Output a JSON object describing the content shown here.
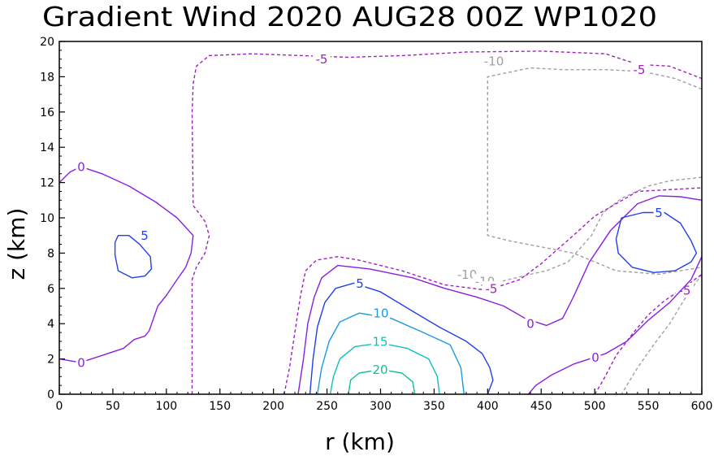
{
  "chart_data": {
    "type": "contour",
    "title": "Gradient Wind 2020 AUG28 00Z  WP1020",
    "xlabel": "r (km)",
    "ylabel": "z (km)",
    "xlim": [
      0,
      600
    ],
    "ylim": [
      0,
      20
    ],
    "xticks": [
      "0",
      "50",
      "100",
      "150",
      "200",
      "250",
      "300",
      "350",
      "400",
      "450",
      "500",
      "550",
      "600"
    ],
    "yticks": [
      "0",
      "2",
      "4",
      "6",
      "8",
      "10",
      "12",
      "14",
      "16",
      "18",
      "20"
    ],
    "contours": [
      {
        "level": -10,
        "label": "-10",
        "color": "#a0a0a0",
        "dash": true,
        "paths": [
          [
            [
              600,
              17.3
            ],
            [
              575,
              17.9
            ],
            [
              545,
              18.3
            ],
            [
              510,
              18.4
            ],
            [
              470,
              18.4
            ],
            [
              440,
              18.5
            ],
            [
              400,
              18.0
            ],
            [
              400,
              9.0
            ],
            [
              420,
              8.7
            ],
            [
              480,
              8.0
            ],
            [
              520,
              7.0
            ],
            [
              560,
              6.8
            ],
            [
              580,
              7.0
            ],
            [
              600,
              7.2
            ]
          ],
          [
            [
              600,
              12.3
            ],
            [
              570,
              12.1
            ],
            [
              550,
              11.8
            ],
            [
              525,
              11.1
            ],
            [
              508,
              10.3
            ],
            [
              497,
              9.0
            ],
            [
              475,
              7.5
            ],
            [
              455,
              7.0
            ],
            [
              440,
              6.8
            ],
            [
              413,
              6.4
            ]
          ],
          [
            [
              600,
              6.8
            ],
            [
              585,
              5.5
            ],
            [
              570,
              4.0
            ],
            [
              555,
              2.8
            ],
            [
              540,
              1.5
            ],
            [
              525,
              0
            ]
          ]
        ],
        "labels": [
          {
            "x": 608,
            "y": 18.9,
            "text": "-10"
          },
          {
            "x": 575,
            "y": 6.8,
            "text": "-10"
          },
          {
            "x": 597,
            "y": 6.4,
            "text": "-10"
          }
        ]
      },
      {
        "level": -5,
        "label": "-5",
        "color": "#a020c0",
        "dash": true,
        "paths": [
          [
            [
              124,
              0
            ],
            [
              124,
              6.5
            ],
            [
              128,
              7.2
            ],
            [
              136,
              8.0
            ],
            [
              140,
              9.0
            ],
            [
              136,
              9.8
            ],
            [
              125,
              10.7
            ],
            [
              124,
              16.0
            ],
            [
              125,
              17.6
            ],
            [
              128,
              18.6
            ],
            [
              140,
              19.2
            ],
            [
              180,
              19.3
            ],
            [
              270,
              19.1
            ],
            [
              320,
              19.2
            ],
            [
              380,
              19.4
            ],
            [
              450,
              19.45
            ],
            [
              510,
              19.3
            ],
            [
              540,
              18.7
            ],
            [
              570,
              18.6
            ],
            [
              600,
              17.9
            ]
          ],
          [
            [
              210,
              0
            ],
            [
              215,
              1.5
            ],
            [
              220,
              3.5
            ],
            [
              225,
              5.5
            ],
            [
              230,
              7.0
            ],
            [
              240,
              7.6
            ],
            [
              260,
              7.8
            ],
            [
              280,
              7.6
            ],
            [
              320,
              7.0
            ],
            [
              360,
              6.2
            ],
            [
              400,
              5.9
            ],
            [
              430,
              6.5
            ],
            [
              450,
              7.4
            ],
            [
              480,
              9.0
            ],
            [
              500,
              10.1
            ],
            [
              540,
              11.5
            ],
            [
              600,
              11.7
            ]
          ],
          [
            [
              500,
              0
            ],
            [
              508,
              0.8
            ],
            [
              520,
              2.2
            ],
            [
              535,
              3.4
            ],
            [
              550,
              4.5
            ],
            [
              565,
              5.3
            ],
            [
              580,
              5.9
            ],
            [
              600,
              6.8
            ]
          ]
        ],
        "labels": [
          {
            "x": 396,
            "y": 19.0,
            "text": "-5"
          },
          {
            "x": 787,
            "y": 18.4,
            "text": "-5"
          },
          {
            "x": 605,
            "y": 6.0,
            "text": "-5"
          },
          {
            "x": 843,
            "y": 5.9,
            "text": "-5"
          }
        ]
      },
      {
        "level": 0,
        "label": "0",
        "color": "#8a1fe0",
        "dash": false,
        "paths": [
          [
            [
              0,
              12.0
            ],
            [
              10,
              12.6
            ],
            [
              20,
              12.9
            ],
            [
              40,
              12.5
            ],
            [
              65,
              11.8
            ],
            [
              90,
              10.9
            ],
            [
              110,
              10.0
            ],
            [
              125,
              9.0
            ],
            [
              123,
              8.0
            ],
            [
              118,
              7.2
            ],
            [
              110,
              6.5
            ],
            [
              100,
              5.6
            ],
            [
              92,
              5.0
            ],
            [
              88,
              4.3
            ],
            [
              84,
              3.6
            ],
            [
              80,
              3.3
            ],
            [
              70,
              3.1
            ],
            [
              60,
              2.6
            ],
            [
              45,
              2.3
            ],
            [
              30,
              2.0
            ],
            [
              20,
              1.8
            ],
            [
              10,
              1.9
            ],
            [
              0,
              2.0
            ]
          ],
          [
            [
              223,
              0
            ],
            [
              228,
              2.0
            ],
            [
              232,
              4.0
            ],
            [
              238,
              5.5
            ],
            [
              245,
              6.6
            ],
            [
              260,
              7.3
            ],
            [
              290,
              7.1
            ],
            [
              330,
              6.6
            ],
            [
              360,
              6.0
            ],
            [
              390,
              5.5
            ],
            [
              415,
              5.0
            ],
            [
              435,
              4.3
            ],
            [
              455,
              3.9
            ],
            [
              470,
              4.3
            ],
            [
              480,
              5.5
            ],
            [
              495,
              7.5
            ],
            [
              515,
              9.3
            ],
            [
              540,
              10.8
            ],
            [
              560,
              11.25
            ],
            [
              580,
              11.2
            ],
            [
              600,
              11.0
            ]
          ],
          [
            [
              438,
              0
            ],
            [
              445,
              0.5
            ],
            [
              460,
              1.1
            ],
            [
              480,
              1.7
            ],
            [
              495,
              2.0
            ],
            [
              510,
              2.3
            ],
            [
              530,
              3.0
            ],
            [
              550,
              4.2
            ],
            [
              570,
              5.2
            ],
            [
              590,
              6.5
            ],
            [
              600,
              7.8
            ]
          ]
        ],
        "labels": [
          {
            "x": 100,
            "y": 12.9,
            "text": "0"
          },
          {
            "x": 100,
            "y": 1.8,
            "text": "0"
          },
          {
            "x": 653,
            "y": 4.0,
            "text": "0"
          },
          {
            "x": 733,
            "y": 2.1,
            "text": "0"
          }
        ]
      },
      {
        "level": 5,
        "label": "5",
        "color": "#2040e8",
        "dash": false,
        "paths": [
          [
            [
              52,
              8.6
            ],
            [
              55,
              9.0
            ],
            [
              60,
              9.0
            ],
            [
              65,
              9.0
            ],
            [
              75,
              8.5
            ],
            [
              85,
              7.8
            ],
            [
              86,
              7.1
            ],
            [
              80,
              6.7
            ],
            [
              68,
              6.6
            ],
            [
              55,
              7.0
            ],
            [
              52,
              7.9
            ],
            [
              52,
              8.6
            ]
          ],
          [
            [
              234,
              0
            ],
            [
              237,
              2.0
            ],
            [
              241,
              3.8
            ],
            [
              248,
              5.2
            ],
            [
              258,
              6.0
            ],
            [
              275,
              6.3
            ],
            [
              300,
              5.8
            ],
            [
              330,
              4.7
            ],
            [
              355,
              3.8
            ],
            [
              380,
              3.0
            ],
            [
              395,
              2.3
            ],
            [
              402,
              1.5
            ],
            [
              405,
              0.8
            ],
            [
              400,
              0
            ]
          ],
          [
            [
              525,
              10.0
            ],
            [
              545,
              10.3
            ],
            [
              565,
              10.3
            ],
            [
              580,
              9.7
            ],
            [
              590,
              8.7
            ],
            [
              595,
              8.0
            ],
            [
              590,
              7.5
            ],
            [
              575,
              7.0
            ],
            [
              555,
              6.9
            ],
            [
              535,
              7.2
            ],
            [
              522,
              8.0
            ],
            [
              520,
              8.8
            ],
            [
              525,
              10.0
            ]
          ]
        ],
        "labels": [
          {
            "x": 178,
            "y": 9.0,
            "text": "5"
          },
          {
            "x": 443,
            "y": 6.3,
            "text": "5"
          },
          {
            "x": 811,
            "y": 10.3,
            "text": "5"
          }
        ]
      },
      {
        "level": 10,
        "label": "10",
        "color": "#1a9be0",
        "dash": false,
        "paths": [
          [
            [
              241,
              0
            ],
            [
              245,
              1.5
            ],
            [
              252,
              3.0
            ],
            [
              262,
              4.1
            ],
            [
              280,
              4.6
            ],
            [
              310,
              4.3
            ],
            [
              340,
              3.5
            ],
            [
              365,
              2.8
            ],
            [
              375,
              1.5
            ],
            [
              378,
              0
            ]
          ]
        ],
        "labels": [
          {
            "x": 469,
            "y": 4.6,
            "text": "10"
          }
        ]
      },
      {
        "level": 15,
        "label": "15",
        "color": "#10c0c0",
        "dash": false,
        "paths": [
          [
            [
              253,
              0
            ],
            [
              256,
              1.0
            ],
            [
              262,
              2.0
            ],
            [
              276,
              2.7
            ],
            [
              300,
              2.9
            ],
            [
              325,
              2.6
            ],
            [
              345,
              2.0
            ],
            [
              353,
              1.0
            ],
            [
              355,
              0
            ]
          ]
        ],
        "labels": [
          {
            "x": 468,
            "y": 3.0,
            "text": "15"
          }
        ]
      },
      {
        "level": 20,
        "label": "20",
        "color": "#10c09a",
        "dash": false,
        "paths": [
          [
            [
              270,
              0
            ],
            [
              272,
              0.8
            ],
            [
              280,
              1.2
            ],
            [
              300,
              1.4
            ],
            [
              320,
              1.2
            ],
            [
              330,
              0.7
            ],
            [
              332,
              0
            ]
          ]
        ],
        "labels": [
          {
            "x": 468,
            "y": 1.4,
            "text": "20"
          }
        ]
      }
    ]
  }
}
